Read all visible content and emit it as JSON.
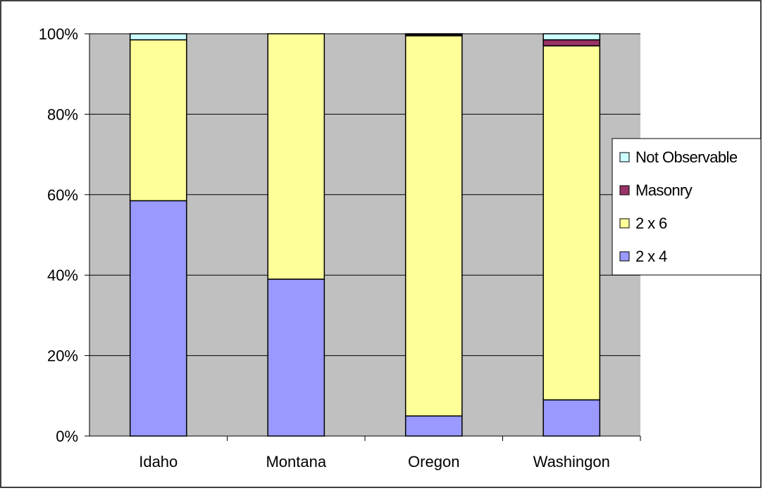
{
  "chart_data": {
    "type": "bar",
    "stacked": "percent",
    "categories": [
      "Idaho",
      "Montana",
      "Oregon",
      "Washingon"
    ],
    "series": [
      {
        "name": "2 x 4",
        "color": "#9999ff",
        "values": [
          58.5,
          39,
          5,
          9
        ]
      },
      {
        "name": "2 x 6",
        "color": "#ffff99",
        "values": [
          40,
          61,
          94.5,
          88
        ]
      },
      {
        "name": "Masonry",
        "color": "#993366",
        "values": [
          0,
          0,
          0.3,
          1.5
        ]
      },
      {
        "name": "Not Observable",
        "color": "#ccffff",
        "values": [
          1.5,
          0,
          0.2,
          1.5
        ]
      }
    ],
    "y_ticks": [
      "0%",
      "20%",
      "40%",
      "60%",
      "80%",
      "100%"
    ],
    "ylim": [
      0,
      100
    ],
    "grid": true,
    "legend_position": "right",
    "plot_background": "#c0c0c0"
  }
}
